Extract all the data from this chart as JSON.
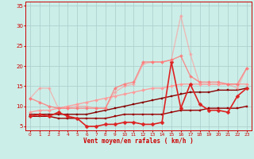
{
  "title": "",
  "xlabel": "Vent moyen/en rafales ( km/h )",
  "background_color": "#cceee8",
  "grid_color": "#aacccc",
  "xlim": [
    -0.5,
    23.5
  ],
  "ylim": [
    4,
    36
  ],
  "yticks": [
    5,
    10,
    15,
    20,
    25,
    30,
    35
  ],
  "xticks": [
    0,
    1,
    2,
    3,
    4,
    5,
    6,
    7,
    8,
    9,
    10,
    11,
    12,
    13,
    14,
    15,
    16,
    17,
    18,
    19,
    20,
    21,
    22,
    23
  ],
  "series": [
    {
      "y": [
        7.5,
        7.5,
        7.5,
        7.0,
        7.0,
        7.0,
        7.0,
        7.0,
        7.0,
        7.5,
        8.0,
        8.0,
        8.0,
        8.0,
        8.0,
        8.5,
        9.0,
        9.0,
        9.0,
        9.5,
        9.5,
        9.5,
        9.5,
        10.0
      ],
      "color": "#990000",
      "lw": 1.0,
      "marker": "s",
      "ms": 2.0,
      "alpha": 1.0
    },
    {
      "y": [
        8.0,
        8.0,
        8.0,
        8.0,
        8.0,
        8.0,
        8.0,
        8.5,
        9.0,
        9.5,
        10.0,
        10.5,
        11.0,
        11.5,
        12.0,
        12.5,
        13.0,
        13.5,
        13.5,
        13.5,
        14.0,
        14.0,
        14.0,
        14.5
      ],
      "color": "#880000",
      "lw": 1.0,
      "marker": "s",
      "ms": 1.5,
      "alpha": 1.0
    },
    {
      "y": [
        8.5,
        9.0,
        9.0,
        9.5,
        10.0,
        10.5,
        11.0,
        11.5,
        12.0,
        12.5,
        13.0,
        13.5,
        14.0,
        14.5,
        14.5,
        15.0,
        15.5,
        15.5,
        15.5,
        15.5,
        15.5,
        15.5,
        15.5,
        15.5
      ],
      "color": "#ff9999",
      "lw": 1.0,
      "marker": "D",
      "ms": 2.0,
      "alpha": 0.9
    },
    {
      "y": [
        7.5,
        8.0,
        7.5,
        8.5,
        7.5,
        7.0,
        5.0,
        5.0,
        5.5,
        5.5,
        6.0,
        6.0,
        5.5,
        5.5,
        6.0,
        21.0,
        9.5,
        15.5,
        10.5,
        9.0,
        9.0,
        8.5,
        12.5,
        14.5
      ],
      "color": "#dd2222",
      "lw": 1.2,
      "marker": "D",
      "ms": 2.5,
      "alpha": 1.0
    },
    {
      "y": [
        12.0,
        14.5,
        14.5,
        9.5,
        9.5,
        10.0,
        10.0,
        9.5,
        9.5,
        13.5,
        15.0,
        15.5,
        20.5,
        21.0,
        21.0,
        21.5,
        32.5,
        23.0,
        15.5,
        15.5,
        15.5,
        15.5,
        14.5,
        19.5
      ],
      "color": "#ff9999",
      "lw": 1.0,
      "marker": "D",
      "ms": 2.0,
      "alpha": 0.6
    },
    {
      "y": [
        12.0,
        11.0,
        10.0,
        9.5,
        9.5,
        9.5,
        9.5,
        9.5,
        9.5,
        14.5,
        15.5,
        16.0,
        21.0,
        21.0,
        21.0,
        21.5,
        22.5,
        17.5,
        16.0,
        16.0,
        16.0,
        15.5,
        15.5,
        19.5
      ],
      "color": "#ff7777",
      "lw": 1.0,
      "marker": "D",
      "ms": 2.0,
      "alpha": 0.8
    }
  ]
}
